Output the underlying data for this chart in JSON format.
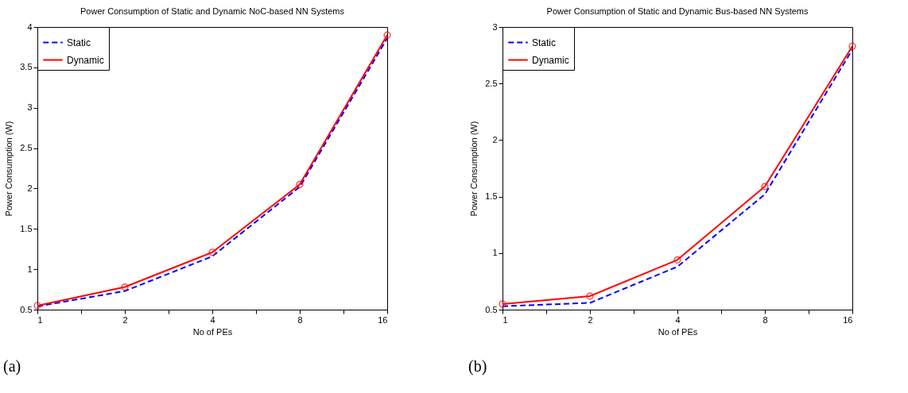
{
  "chart_data": [
    {
      "type": "line",
      "title": "Power Consumption of Static and Dynamic NoC-based NN Systems",
      "xlabel": "No of PEs",
      "ylabel": "Power Consumption (W)",
      "x": [
        1,
        2,
        4,
        8,
        16
      ],
      "log": "x",
      "xlim": [
        1,
        16
      ],
      "xticks": [
        1,
        {
          "value": 1.414,
          "label": null
        },
        2,
        {
          "value": 2.828,
          "label": null
        },
        4,
        {
          "value": 5.657,
          "label": null
        },
        8,
        {
          "value": 11.31,
          "label": null
        },
        16
      ],
      "ylim": [
        0.5,
        4
      ],
      "yticks": [
        0.5,
        1,
        1.5,
        2,
        2.5,
        3,
        3.5,
        4
      ],
      "legend": "top left",
      "annotations": [
        "(a)"
      ],
      "series": [
        {
          "name": "Static",
          "color": "#0000ff",
          "line_style": "dashed",
          "marker": "none",
          "values": [
            0.54,
            0.73,
            1.16,
            2.02,
            3.86
          ]
        },
        {
          "name": "Dynamic",
          "color": "#ff0000",
          "line_style": "solid",
          "marker": "circle",
          "values": [
            0.55,
            0.78,
            1.21,
            2.05,
            3.9
          ]
        }
      ]
    },
    {
      "type": "line",
      "title": "Power Consumption of Static and Dynamic Bus-based NN Systems",
      "xlabel": "No of PEs",
      "ylabel": "Power Consumption (W)",
      "x": [
        1,
        2,
        4,
        8,
        16
      ],
      "log": "x",
      "xlim": [
        1,
        16
      ],
      "xticks": [
        1,
        {
          "value": 1.414,
          "label": null
        },
        2,
        {
          "value": 2.828,
          "label": null
        },
        4,
        {
          "value": 5.657,
          "label": null
        },
        8,
        {
          "value": 11.31,
          "label": null
        },
        16
      ],
      "ylim": [
        0.5,
        3
      ],
      "yticks": [
        0.5,
        1,
        1.5,
        2,
        2.5,
        3
      ],
      "legend": "top left",
      "annotations": [
        "(b)"
      ],
      "series": [
        {
          "name": "Static",
          "color": "#0000ff",
          "line_style": "dashed",
          "marker": "none",
          "values": [
            0.53,
            0.56,
            0.88,
            1.52,
            2.8
          ]
        },
        {
          "name": "Dynamic",
          "color": "#ff0000",
          "line_style": "solid",
          "marker": "circle",
          "values": [
            0.55,
            0.62,
            0.94,
            1.59,
            2.83
          ]
        }
      ]
    }
  ]
}
